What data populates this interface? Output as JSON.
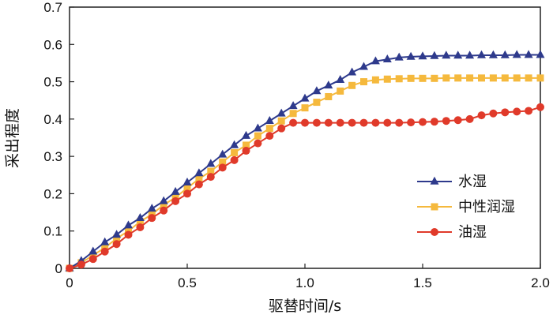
{
  "chart_data": {
    "type": "line",
    "xlabel": "驱替时间/s",
    "ylabel": "采出程度",
    "xlim": [
      0,
      2.0
    ],
    "ylim": [
      0,
      0.7
    ],
    "xticks": [
      "0",
      "0.5",
      "1.0",
      "1.5",
      "2.0"
    ],
    "yticks": [
      "0",
      "0.1",
      "0.2",
      "0.3",
      "0.4",
      "0.5",
      "0.6",
      "0.7"
    ],
    "grid": false,
    "legend_position": "center-right",
    "series": [
      {
        "name": "水湿",
        "color": "#2e3a8c",
        "marker": "triangle",
        "x": [
          0,
          0.05,
          0.1,
          0.15,
          0.2,
          0.25,
          0.3,
          0.35,
          0.4,
          0.45,
          0.5,
          0.55,
          0.6,
          0.65,
          0.7,
          0.75,
          0.8,
          0.85,
          0.9,
          0.95,
          1.0,
          1.05,
          1.1,
          1.15,
          1.2,
          1.25,
          1.3,
          1.35,
          1.4,
          1.45,
          1.5,
          1.55,
          1.6,
          1.65,
          1.7,
          1.75,
          1.8,
          1.85,
          1.9,
          1.95,
          2.0
        ],
        "y": [
          0.0,
          0.02,
          0.045,
          0.07,
          0.09,
          0.115,
          0.135,
          0.16,
          0.18,
          0.205,
          0.23,
          0.255,
          0.28,
          0.305,
          0.33,
          0.355,
          0.375,
          0.395,
          0.415,
          0.435,
          0.455,
          0.475,
          0.49,
          0.505,
          0.525,
          0.54,
          0.555,
          0.56,
          0.565,
          0.567,
          0.568,
          0.569,
          0.57,
          0.57,
          0.57,
          0.571,
          0.571,
          0.571,
          0.572,
          0.572,
          0.572
        ]
      },
      {
        "name": "中性润湿",
        "color": "#f5b93d",
        "marker": "square",
        "x": [
          0,
          0.05,
          0.1,
          0.15,
          0.2,
          0.25,
          0.3,
          0.35,
          0.4,
          0.45,
          0.5,
          0.55,
          0.6,
          0.65,
          0.7,
          0.75,
          0.8,
          0.85,
          0.9,
          0.95,
          1.0,
          1.05,
          1.1,
          1.15,
          1.2,
          1.25,
          1.3,
          1.35,
          1.4,
          1.45,
          1.5,
          1.55,
          1.6,
          1.65,
          1.7,
          1.75,
          1.8,
          1.85,
          1.9,
          1.95,
          2.0
        ],
        "y": [
          0.0,
          0.015,
          0.035,
          0.055,
          0.08,
          0.1,
          0.125,
          0.145,
          0.17,
          0.19,
          0.215,
          0.24,
          0.26,
          0.285,
          0.31,
          0.33,
          0.355,
          0.375,
          0.395,
          0.415,
          0.43,
          0.445,
          0.46,
          0.475,
          0.49,
          0.5,
          0.505,
          0.507,
          0.508,
          0.509,
          0.509,
          0.509,
          0.51,
          0.51,
          0.51,
          0.51,
          0.51,
          0.51,
          0.51,
          0.51,
          0.51
        ]
      },
      {
        "name": "油湿",
        "color": "#e03a2a",
        "marker": "circle",
        "x": [
          0,
          0.05,
          0.1,
          0.15,
          0.2,
          0.25,
          0.3,
          0.35,
          0.4,
          0.45,
          0.5,
          0.55,
          0.6,
          0.65,
          0.7,
          0.75,
          0.8,
          0.85,
          0.9,
          0.95,
          1.0,
          1.05,
          1.1,
          1.15,
          1.2,
          1.25,
          1.3,
          1.35,
          1.4,
          1.45,
          1.5,
          1.55,
          1.6,
          1.65,
          1.7,
          1.75,
          1.8,
          1.85,
          1.9,
          1.95,
          2.0
        ],
        "y": [
          0.0,
          0.01,
          0.025,
          0.045,
          0.065,
          0.09,
          0.11,
          0.135,
          0.155,
          0.18,
          0.2,
          0.225,
          0.245,
          0.27,
          0.29,
          0.315,
          0.335,
          0.355,
          0.375,
          0.39,
          0.39,
          0.39,
          0.39,
          0.39,
          0.39,
          0.39,
          0.39,
          0.39,
          0.39,
          0.391,
          0.392,
          0.393,
          0.395,
          0.397,
          0.4,
          0.41,
          0.415,
          0.418,
          0.42,
          0.422,
          0.432
        ]
      }
    ]
  }
}
